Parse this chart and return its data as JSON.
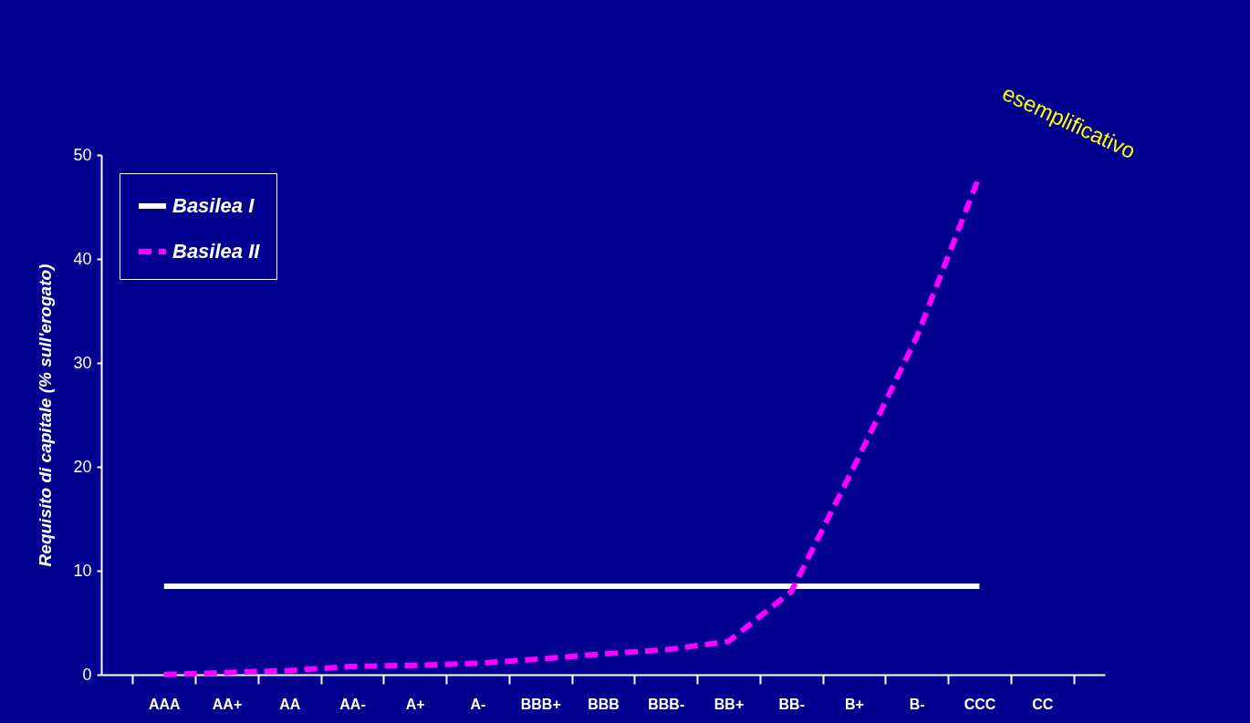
{
  "chart_data": {
    "type": "line",
    "ylabel": "Requisito di capitale (% sull'erogato)",
    "categories": [
      "AAA",
      "AA+",
      "AA",
      "AA-",
      "A+",
      "A-",
      "BBB+",
      "BBB",
      "BBB-",
      "BB+",
      "BB-",
      "B+",
      "B-",
      "CCC",
      "CC"
    ],
    "series": [
      {
        "name": "Basilea I",
        "color": "#ffffff",
        "line_style": "solid",
        "values": [
          8.5,
          8.5,
          8.5,
          8.5,
          8.5,
          8.5,
          8.5,
          8.5,
          8.5,
          8.5,
          8.5,
          8.5,
          8.5,
          8.5,
          null
        ]
      },
      {
        "name": "Basilea II",
        "color": "#ff00ff",
        "line_style": "dashed",
        "values": [
          0,
          0.2,
          0.4,
          0.8,
          0.9,
          1.1,
          1.5,
          2,
          2.4,
          3.2,
          8,
          20,
          32.5,
          48,
          null
        ]
      }
    ],
    "ylim": [
      0,
      50
    ],
    "yticks": [
      0,
      10,
      20,
      30,
      40,
      50
    ],
    "grid": false,
    "legend": "top left",
    "marker": "none",
    "annotations": [
      "esemplificativo"
    ]
  }
}
